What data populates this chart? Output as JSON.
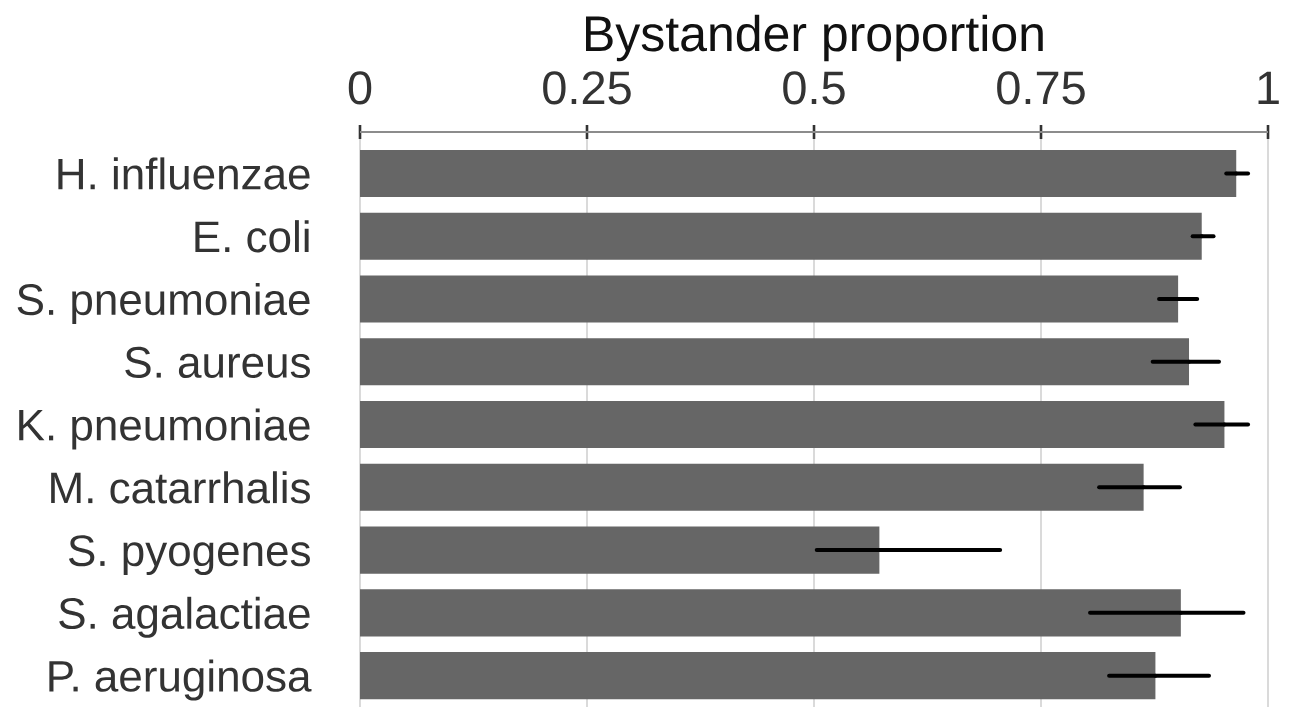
{
  "chart_data": {
    "type": "bar",
    "orientation": "horizontal",
    "xlabel": "Bystander proportion",
    "categories": [
      "H. influenzae",
      "E. coli",
      "S. pneumoniae",
      "S. aureus",
      "K. pneumoniae",
      "M. catarrhalis",
      "S. pyogenes",
      "S. agalactiae",
      "P. aeruginosa"
    ],
    "values": [
      0.965,
      0.927,
      0.901,
      0.913,
      0.952,
      0.863,
      0.572,
      0.904,
      0.876
    ],
    "errors": [
      [
        0.954,
        0.978
      ],
      [
        0.917,
        0.94
      ],
      [
        0.88,
        0.922
      ],
      [
        0.873,
        0.946
      ],
      [
        0.92,
        0.978
      ],
      [
        0.814,
        0.903
      ],
      [
        0.503,
        0.705
      ],
      [
        0.804,
        0.973
      ],
      [
        0.825,
        0.935
      ]
    ],
    "color": "#666666",
    "xlim": [
      0,
      1
    ],
    "xticks": [
      0,
      0.25,
      0.5,
      0.75,
      1
    ],
    "grid": "x"
  }
}
